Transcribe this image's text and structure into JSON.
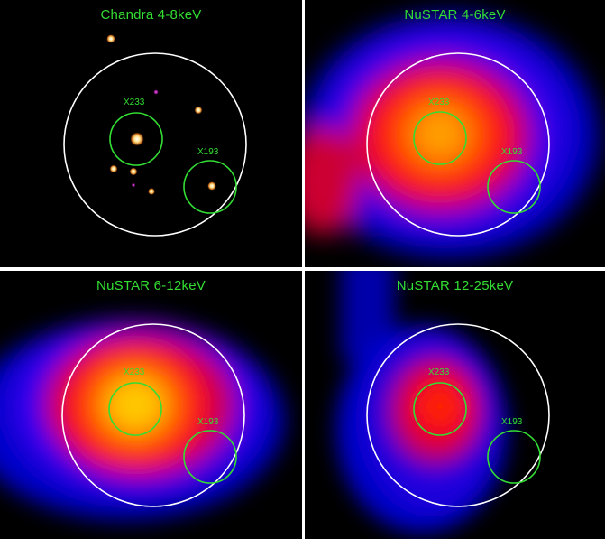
{
  "figure": {
    "colors": {
      "circle": "#ffffff",
      "region": "#33dd33",
      "title": "#33dd33",
      "background": "#000000"
    },
    "panels": [
      {
        "title": "Chandra 4-8keV",
        "sources": [
          {
            "label": "X233"
          },
          {
            "label": "X193"
          }
        ]
      },
      {
        "title": "NuSTAR 4-6keV",
        "sources": [
          {
            "label": "X233"
          },
          {
            "label": "X193"
          }
        ]
      },
      {
        "title": "NuSTAR 6-12keV",
        "sources": [
          {
            "label": "X233"
          },
          {
            "label": "X193"
          }
        ]
      },
      {
        "title": "NuSTAR 12-25keV",
        "sources": [
          {
            "label": "X233"
          },
          {
            "label": "X193"
          }
        ]
      }
    ]
  }
}
